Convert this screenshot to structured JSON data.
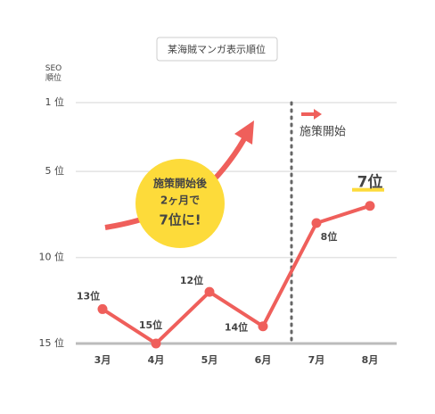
{
  "chart_data": {
    "type": "line",
    "y_label": "SEO\n順位",
    "categories": [
      "3月",
      "4月",
      "5月",
      "6月",
      "7月",
      "8月"
    ],
    "series": [
      {
        "name": "某海賊マンガ表示順位",
        "color": "#ef5f5b",
        "values": [
          13,
          15,
          12,
          14,
          8,
          7
        ],
        "value_labels": [
          "13位",
          "15位",
          "12位",
          "14位",
          "8位",
          "7位"
        ]
      }
    ],
    "ylim": [
      15,
      1
    ],
    "yticks": [
      {
        "value": 1,
        "label": "1 位"
      },
      {
        "value": 5,
        "label": "5 位"
      },
      {
        "value": 10,
        "label": "10 位"
      },
      {
        "value": 15,
        "label": "15 位"
      }
    ],
    "grid": true,
    "annotations": [
      "施策開始",
      "施策開始後",
      "2ヶ月で",
      "7位に!"
    ]
  }
}
